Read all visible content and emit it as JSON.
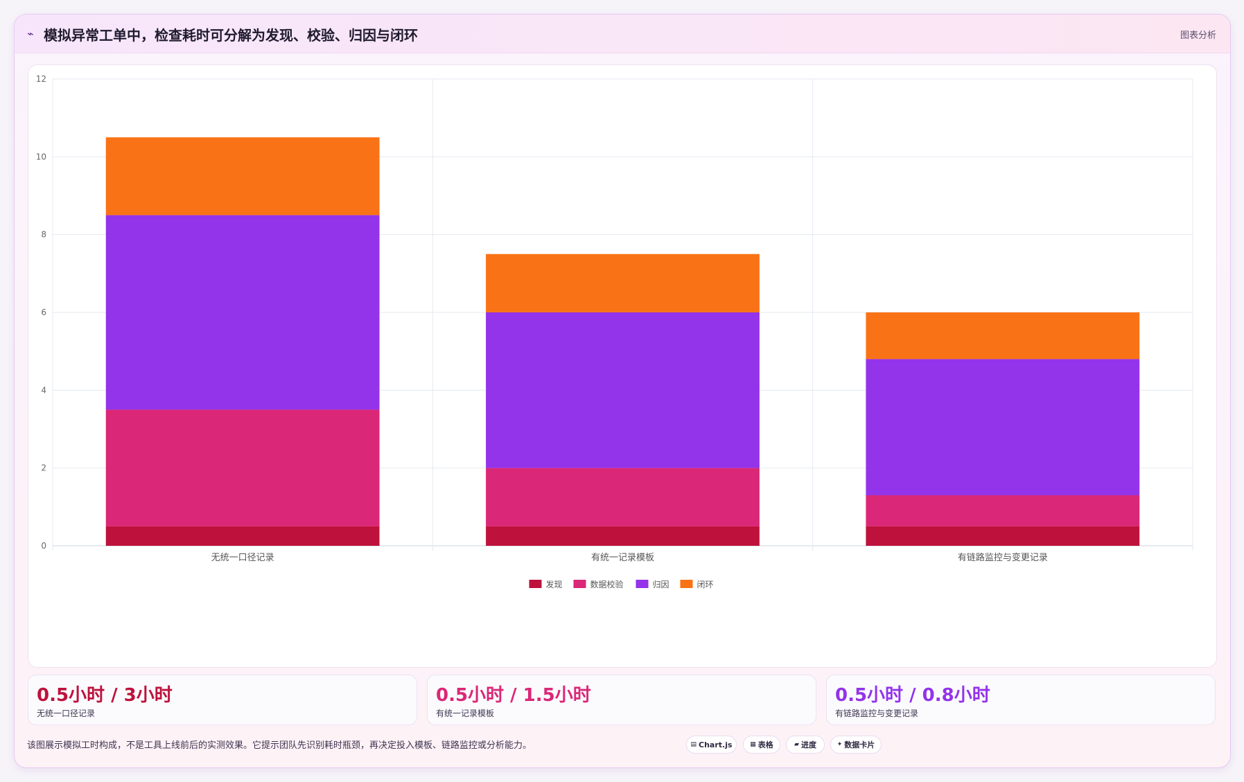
{
  "header": {
    "icon": "trend-icon",
    "icon_glyph": "⌁",
    "title": "模拟异常工单中，检查耗时可分解为发现、校验、归因与闭环",
    "tag": "图表分析"
  },
  "chart_data": {
    "type": "bar",
    "stacked": true,
    "categories": [
      "无统一口径记录",
      "有统一记录模板",
      "有链路监控与变更记录"
    ],
    "series": [
      {
        "name": "发现",
        "values": [
          0.5,
          0.5,
          0.5
        ],
        "color": "#be123c"
      },
      {
        "name": "数据校验",
        "values": [
          3,
          1.5,
          0.8
        ],
        "color": "#db2777"
      },
      {
        "name": "归因",
        "values": [
          5,
          4,
          3.5
        ],
        "color": "#9333ea"
      },
      {
        "name": "闭环",
        "values": [
          2,
          1.5,
          1.2
        ],
        "color": "#f97316"
      }
    ],
    "ylim": [
      0,
      12
    ],
    "yticks": [
      0,
      2,
      4,
      6,
      8,
      10,
      12
    ],
    "grid": true,
    "legend": "bottom"
  },
  "stats": [
    {
      "value": "0.5小时 / 3小时",
      "label": "无统一口径记录",
      "color": "#be123c"
    },
    {
      "value": "0.5小时 / 1.5小时",
      "label": "有统一记录模板",
      "color": "#db2777"
    },
    {
      "value": "0.5小时 / 0.8小时",
      "label": "有链路监控与变更记录",
      "color": "#9333ea"
    }
  ],
  "footnote": "该图展示模拟工时构成，不是工具上线前后的实测效果。它提示团队先识别耗时瓶颈，再决定投入模板、链路监控或分析能力。",
  "pills": [
    {
      "icon": "▤",
      "label": "Chart.js"
    },
    {
      "icon": "▦",
      "label": "表格"
    },
    {
      "icon": "▰",
      "label": "进度"
    },
    {
      "icon": "✦",
      "label": "数据卡片"
    }
  ]
}
